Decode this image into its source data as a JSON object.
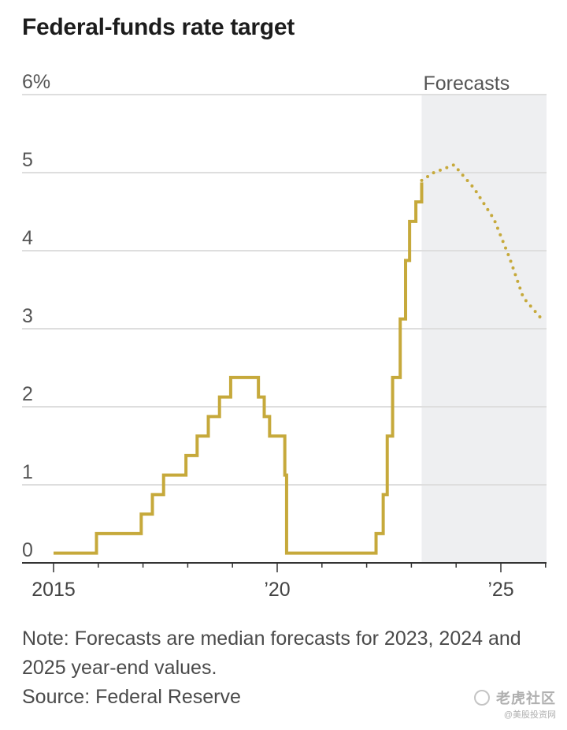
{
  "chart_data": {
    "type": "line",
    "title": "Federal-funds rate target",
    "ylabel": "",
    "xlabel": "",
    "y_unit_suffix": "%",
    "ylim": [
      0,
      6
    ],
    "y_ticks": [
      {
        "value": 0,
        "label": "0"
      },
      {
        "value": 1,
        "label": "1"
      },
      {
        "value": 2,
        "label": "2"
      },
      {
        "value": 3,
        "label": "3"
      },
      {
        "value": 4,
        "label": "4"
      },
      {
        "value": 5,
        "label": "5"
      },
      {
        "value": 6,
        "label": "6%"
      }
    ],
    "xlim": [
      2014.75,
      2026.0
    ],
    "x_major_ticks": [
      {
        "value": 2015,
        "label": "2015"
      },
      {
        "value": 2020,
        "label": "’20"
      },
      {
        "value": 2025,
        "label": "’25"
      }
    ],
    "x_minor_ticks": [
      2016,
      2017,
      2018,
      2019,
      2021,
      2022,
      2023,
      2024,
      2026
    ],
    "series": [
      {
        "name": "Federal-funds rate target",
        "style": "step",
        "color": "#c6a93b",
        "points": [
          [
            2015.0,
            0.125
          ],
          [
            2015.96,
            0.375
          ],
          [
            2016.96,
            0.625
          ],
          [
            2017.21,
            0.875
          ],
          [
            2017.46,
            1.125
          ],
          [
            2017.96,
            1.375
          ],
          [
            2018.21,
            1.625
          ],
          [
            2018.46,
            1.875
          ],
          [
            2018.71,
            2.125
          ],
          [
            2018.96,
            2.375
          ],
          [
            2019.58,
            2.125
          ],
          [
            2019.71,
            1.875
          ],
          [
            2019.83,
            1.625
          ],
          [
            2020.17,
            1.125
          ],
          [
            2020.21,
            0.125
          ],
          [
            2022.21,
            0.375
          ],
          [
            2022.37,
            0.875
          ],
          [
            2022.46,
            1.625
          ],
          [
            2022.58,
            2.375
          ],
          [
            2022.75,
            3.125
          ],
          [
            2022.87,
            3.875
          ],
          [
            2022.96,
            4.375
          ],
          [
            2023.1,
            4.625
          ],
          [
            2023.23,
            4.875
          ]
        ]
      },
      {
        "name": "Forecasts",
        "style": "dotted",
        "color": "#c6a93b",
        "points": [
          [
            2023.23,
            4.9
          ],
          [
            2023.5,
            5.0
          ],
          [
            2023.95,
            5.1
          ],
          [
            2024.4,
            4.8
          ],
          [
            2024.85,
            4.4
          ],
          [
            2025.2,
            3.9
          ],
          [
            2025.5,
            3.4
          ],
          [
            2025.95,
            3.1
          ]
        ]
      }
    ],
    "forecast_region": {
      "from": 2023.23,
      "to": 2026.0,
      "label": "Forecasts"
    },
    "legend": "none",
    "grid": true
  },
  "note": "Note: Forecasts are median forecasts for 2023, 2024 and 2025 year-end values.",
  "source": "Source: Federal Reserve",
  "watermark": {
    "main": "老虎社区",
    "sub": "@美股投资网"
  }
}
